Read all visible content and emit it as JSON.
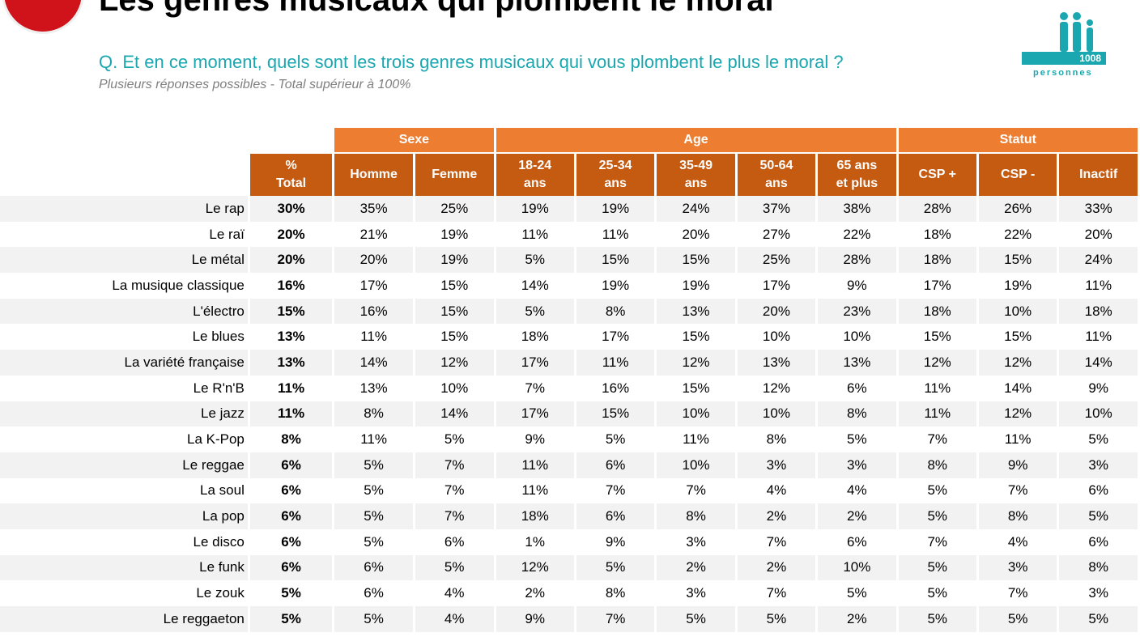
{
  "title": "Les genres musicaux qui plombent le moral",
  "question": "Q. Et  en ce moment, quels sont les trois genres musicaux qui vous plombent le plus le moral ?",
  "subtitle": "Plusieurs réponses possibles - Total supérieur à 100%",
  "sample": {
    "count": "1008",
    "label": "personnes",
    "icon": "people-icon",
    "color": "#1aa7b0"
  },
  "colors": {
    "group_header": "#ed7d31",
    "column_header": "#c55a11",
    "stripe": "#f2f2f2"
  },
  "table": {
    "groups": [
      "Sexe",
      "Age",
      "Statut"
    ],
    "total_header": [
      "%",
      "Total"
    ],
    "columns": [
      [
        "Homme",
        ""
      ],
      [
        "Femme",
        ""
      ],
      [
        "18-24",
        "ans"
      ],
      [
        "25-34",
        "ans"
      ],
      [
        "35-49",
        "ans"
      ],
      [
        "50-64",
        "ans"
      ],
      [
        "65 ans",
        "et plus"
      ],
      [
        "CSP +",
        ""
      ],
      [
        "CSP -",
        ""
      ],
      [
        "Inactif",
        ""
      ]
    ],
    "rows": [
      {
        "label": "Le rap",
        "total": "30%",
        "values": [
          "35%",
          "25%",
          "19%",
          "19%",
          "24%",
          "37%",
          "38%",
          "28%",
          "26%",
          "33%"
        ]
      },
      {
        "label": "Le raï",
        "total": "20%",
        "values": [
          "21%",
          "19%",
          "11%",
          "11%",
          "20%",
          "27%",
          "22%",
          "18%",
          "22%",
          "20%"
        ]
      },
      {
        "label": "Le métal",
        "total": "20%",
        "values": [
          "20%",
          "19%",
          "5%",
          "15%",
          "15%",
          "25%",
          "28%",
          "18%",
          "15%",
          "24%"
        ]
      },
      {
        "label": "La musique classique",
        "total": "16%",
        "values": [
          "17%",
          "15%",
          "14%",
          "19%",
          "19%",
          "17%",
          "9%",
          "17%",
          "19%",
          "11%"
        ]
      },
      {
        "label": "L'électro",
        "total": "15%",
        "values": [
          "16%",
          "15%",
          "5%",
          "8%",
          "13%",
          "20%",
          "23%",
          "18%",
          "10%",
          "18%"
        ]
      },
      {
        "label": "Le blues",
        "total": "13%",
        "values": [
          "11%",
          "15%",
          "18%",
          "17%",
          "15%",
          "10%",
          "10%",
          "15%",
          "15%",
          "11%"
        ]
      },
      {
        "label": "La variété française",
        "total": "13%",
        "values": [
          "14%",
          "12%",
          "17%",
          "11%",
          "12%",
          "13%",
          "13%",
          "12%",
          "12%",
          "14%"
        ]
      },
      {
        "label": "Le R'n'B",
        "total": "11%",
        "values": [
          "13%",
          "10%",
          "7%",
          "16%",
          "15%",
          "12%",
          "6%",
          "11%",
          "14%",
          "9%"
        ]
      },
      {
        "label": "Le jazz",
        "total": "11%",
        "values": [
          "8%",
          "14%",
          "17%",
          "15%",
          "10%",
          "10%",
          "8%",
          "11%",
          "12%",
          "10%"
        ]
      },
      {
        "label": "La K-Pop",
        "total": "8%",
        "values": [
          "11%",
          "5%",
          "9%",
          "5%",
          "11%",
          "8%",
          "5%",
          "7%",
          "11%",
          "5%"
        ]
      },
      {
        "label": "Le reggae",
        "total": "6%",
        "values": [
          "5%",
          "7%",
          "11%",
          "6%",
          "10%",
          "3%",
          "3%",
          "8%",
          "9%",
          "3%"
        ]
      },
      {
        "label": "La soul",
        "total": "6%",
        "values": [
          "5%",
          "7%",
          "11%",
          "7%",
          "7%",
          "4%",
          "4%",
          "5%",
          "7%",
          "6%"
        ]
      },
      {
        "label": "La pop",
        "total": "6%",
        "values": [
          "5%",
          "7%",
          "18%",
          "6%",
          "8%",
          "2%",
          "2%",
          "5%",
          "8%",
          "5%"
        ]
      },
      {
        "label": "Le disco",
        "total": "6%",
        "values": [
          "5%",
          "6%",
          "1%",
          "9%",
          "3%",
          "7%",
          "6%",
          "7%",
          "4%",
          "6%"
        ]
      },
      {
        "label": "Le funk",
        "total": "6%",
        "values": [
          "6%",
          "5%",
          "12%",
          "5%",
          "2%",
          "2%",
          "10%",
          "5%",
          "3%",
          "8%"
        ]
      },
      {
        "label": "Le zouk",
        "total": "5%",
        "values": [
          "6%",
          "4%",
          "2%",
          "8%",
          "3%",
          "7%",
          "5%",
          "5%",
          "7%",
          "3%"
        ]
      },
      {
        "label": "Le reggaeton",
        "total": "5%",
        "values": [
          "5%",
          "4%",
          "9%",
          "7%",
          "5%",
          "5%",
          "2%",
          "5%",
          "5%",
          "5%"
        ]
      }
    ]
  }
}
